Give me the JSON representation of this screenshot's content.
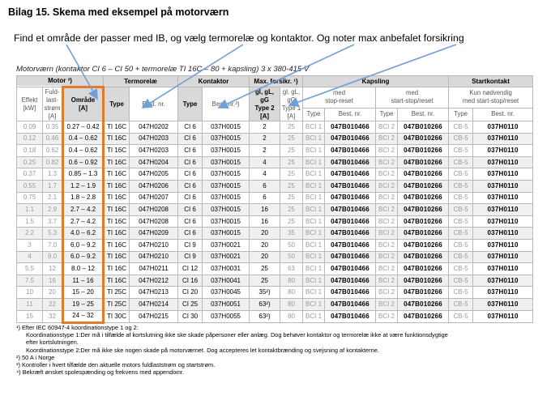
{
  "heading": "Bilag 15. Skema med eksempel på motorværn",
  "instruction": "Find et område der passer med IB, og vælg termorelæ og kontaktor. Og noter max anbefalet forsikring",
  "caption": "Motorværn (kontaktor CI 6 – CI 50 + termorelæ TI 16C – 80 + kapsling) 3 x 380-415 V",
  "groups": {
    "motor": "Motor ³)",
    "termorelae": "Termorelæ",
    "kontaktor": "Kontaktor",
    "max": "Max. forsikr. ¹)",
    "kapsling": "Kapsling",
    "startkontakt": "Startkontakt"
  },
  "subheaders": {
    "effekt": [
      "Effekt",
      "[kW]"
    ],
    "fuld": [
      "Fuld-",
      "last-",
      "strøm",
      "[A]"
    ],
    "omraade": [
      "Område",
      "[A]"
    ],
    "type": "Type",
    "best_nr": "Best. nr.",
    "best_nr_k": "Best. nr.³)",
    "type2": [
      "gl, gL,",
      "gG",
      "Type 2",
      "[A]"
    ],
    "type1": [
      "gl, gL,",
      "gG",
      "Type 1",
      "[A]"
    ],
    "med_stop": [
      "med",
      "stop-reset"
    ],
    "med_start": [
      "med",
      "start-stop/reset"
    ],
    "kun": [
      "Kun nødvendig",
      "med start-stop/reset"
    ]
  },
  "rows": [
    [
      "0.09",
      "0.35",
      "0.27 – 0.42",
      "TI 16C",
      "047H0202",
      "CI 6",
      "037H0015",
      "2",
      "25",
      "BCI 1",
      "047B010466",
      "BCI 2",
      "047B010266",
      "CB-5",
      "037H0110"
    ],
    [
      "0.12",
      "0.46",
      "0.4 – 0.62",
      "TI 16C",
      "047H0203",
      "CI 6",
      "037H0015",
      "2",
      "25",
      "BCI 1",
      "047B010466",
      "BCI 2",
      "047B010266",
      "CB-5",
      "037H0110"
    ],
    [
      "0.18",
      "0.62",
      "0.4 – 0.62",
      "TI 16C",
      "047H0203",
      "CI 6",
      "037H0015",
      "2",
      "25",
      "BCI 1",
      "047B010466",
      "BCI 2",
      "047B010266",
      "CB-5",
      "037H0110"
    ],
    [
      "0.25",
      "0.82",
      "0.6 – 0.92",
      "TI 16C",
      "047H0204",
      "CI 6",
      "037H0015",
      "4",
      "25",
      "BCI 1",
      "047B010466",
      "BCI 2",
      "047B010266",
      "CB-5",
      "037H0110"
    ],
    [
      "0.37",
      "1.3",
      "0.85 – 1.3",
      "TI 16C",
      "047H0205",
      "CI 6",
      "037H0015",
      "4",
      "25",
      "BCI 1",
      "047B010466",
      "BCI 2",
      "047B010266",
      "CB-5",
      "037H0110"
    ],
    [
      "0.55",
      "1.7",
      "1.2 – 1.9",
      "TI 16C",
      "047H0206",
      "CI 6",
      "037H0015",
      "6",
      "25",
      "BCI 1",
      "047B010466",
      "BCI 2",
      "047B010266",
      "CB-5",
      "037H0110"
    ],
    [
      "0.75",
      "2.1",
      "1.8 – 2.8",
      "TI 16C",
      "047H0207",
      "CI 6",
      "037H0015",
      "6",
      "25",
      "BCI 1",
      "047B010466",
      "BCI 2",
      "047B010266",
      "CB-5",
      "037H0110"
    ],
    [
      "1.1",
      "2.9",
      "2.7 – 4.2",
      "TI 16C",
      "047H0208",
      "CI 6",
      "037H0015",
      "16",
      "25",
      "BCI 1",
      "047B010466",
      "BCI 2",
      "047B010266",
      "CB-5",
      "037H0110"
    ],
    [
      "1.5",
      "3.7",
      "2.7 – 4.2",
      "TI 16C",
      "047H0208",
      "CI 6",
      "037H0015",
      "16",
      "25",
      "BCI 1",
      "047B010466",
      "BCI 2",
      "047B010266",
      "CB-5",
      "037H0110"
    ],
    [
      "2.2",
      "5.3",
      "4.0 – 6.2",
      "TI 16C",
      "047H0209",
      "CI 6",
      "037H0015",
      "20",
      "35",
      "BCI 1",
      "047B010466",
      "BCI 2",
      "047B010266",
      "CB-5",
      "037H0110"
    ],
    [
      "3",
      "7.0",
      "6.0 – 9.2",
      "TI 16C",
      "047H0210",
      "CI 9",
      "037H0021",
      "20",
      "50",
      "BCI 1",
      "047B010466",
      "BCI 2",
      "047B010266",
      "CB-5",
      "037H0110"
    ],
    [
      "4",
      "9.0",
      "6.0 – 9.2",
      "TI 16C",
      "047H0210",
      "CI 9",
      "037H0021",
      "20",
      "50",
      "BCI 1",
      "047B010466",
      "BCI 2",
      "047B010266",
      "CB-5",
      "037H0110"
    ],
    [
      "5.5",
      "12",
      "8.0 – 12",
      "TI 16C",
      "047H0211",
      "CI 12",
      "037H0031",
      "25",
      "63",
      "BCI 1",
      "047B010466",
      "BCI 2",
      "047B010266",
      "CB-5",
      "037H0110"
    ],
    [
      "7.5",
      "16",
      "11 – 16",
      "TI 16C",
      "047H0212",
      "CI 16",
      "037H0041",
      "25",
      "80",
      "BCI 1",
      "047B010466",
      "BCI 2",
      "047B010266",
      "CB-5",
      "037H0110"
    ],
    [
      "10",
      "20",
      "15 – 20",
      "TI 25C",
      "047H0213",
      "CI 20",
      "037H0045",
      "35²)",
      "80",
      "BCI 1",
      "047B010466",
      "BCI 2",
      "047B010266",
      "CB-5",
      "037H0110"
    ],
    [
      "11",
      "22",
      "19 – 25",
      "TI 25C",
      "047H0214",
      "CI 25",
      "037H0051",
      "63²)",
      "80",
      "BCI 1",
      "047B010466",
      "BCI 2",
      "047B010266",
      "CB-5",
      "037H0110"
    ],
    [
      "15",
      "32",
      "24 – 32",
      "TI 30C",
      "047H0215",
      "CI 30",
      "037H0055",
      "63²)",
      "80",
      "BCI 1",
      "047B010466",
      "BCI 2",
      "047B010266",
      "CB-5",
      "037H0110"
    ]
  ],
  "notes": [
    "¹)  Efter IEC 60947-4 koordinationstype 1 og 2:",
    "Koordinationstype 1:Der må i tilfælde af kortslutning ikke ske skade påpersoner eller anlæg. Dog behøver kontaktor og termorelæ ikke at være funktionsdygtige",
    "efter kortslutningen.",
    "Koordinationstype 2:Der må ikke ske nogen skade på motorværnet. Dog accepteres let kontaktbrænding og svejsning af kontakterne.",
    "²)  50 A i Norge",
    "³)  Kontroller i hvert tilfælde den aktuelle motors fuldlaststrøm og startstrøm.",
    "⁴)  Bekræft ønsket spolespænding og frekvens med appendixnr."
  ],
  "colors": {
    "highlight": "#e07a2c",
    "arrow": "#6f9fd8",
    "header_gray": "#d9d9d9"
  }
}
